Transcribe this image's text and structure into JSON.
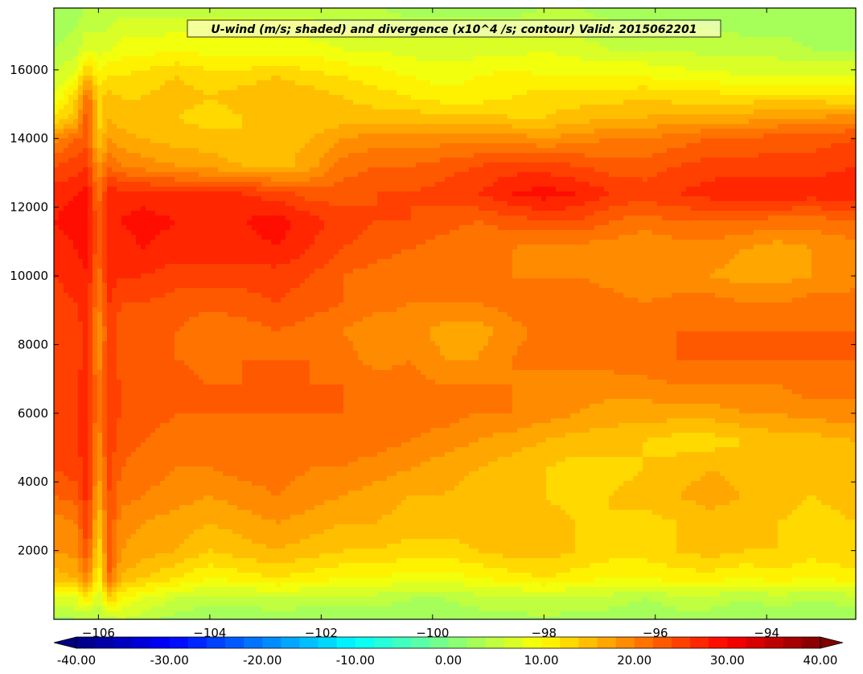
{
  "chart_data": {
    "type": "heatmap",
    "title": "U-wind (m/s; shaded) and divergence (x10^4 /s; contour) Valid: 2015062201",
    "xlabel": "",
    "ylabel": "",
    "xlim": [
      -106.8,
      -92.4
    ],
    "ylim": [
      0,
      17800
    ],
    "x_ticks": [
      -106,
      -104,
      -102,
      -100,
      -98,
      -96,
      -94
    ],
    "x_tick_labels": [
      "−106",
      "−104",
      "−102",
      "−100",
      "−98",
      "−96",
      "−94"
    ],
    "y_ticks": [
      2000,
      4000,
      6000,
      8000,
      10000,
      12000,
      14000,
      16000
    ],
    "y_tick_labels": [
      "2000",
      "4000",
      "6000",
      "8000",
      "10000",
      "12000",
      "14000",
      "16000"
    ],
    "colormap": "jet",
    "colorbar": {
      "min": -40,
      "max": 40,
      "levels": 40,
      "extend": "both",
      "ticks": [
        -40,
        -30,
        -20,
        -10,
        0,
        10,
        20,
        30,
        40
      ],
      "tick_labels": [
        "-40.00",
        "-30.00",
        "-20.00",
        "-10.00",
        "0.00",
        "10.00",
        "20.00",
        "30.00",
        "40.00"
      ]
    },
    "x": [
      -106.8,
      -106.4,
      -106.2,
      -106.0,
      -105.8,
      -105.6,
      -105.2,
      -104.6,
      -104.0,
      -103.4,
      -102.8,
      -102.2,
      -101.6,
      -101.0,
      -100.4,
      -99.8,
      -99.2,
      -98.6,
      -98.0,
      -97.4,
      -96.8,
      -96.2,
      -95.6,
      -95.0,
      -94.4,
      -93.8,
      -93.2,
      -92.4
    ],
    "y": [
      0,
      600,
      1200,
      2000,
      2800,
      3600,
      4400,
      5200,
      6000,
      6800,
      7600,
      8400,
      9200,
      10000,
      10800,
      11600,
      12400,
      13200,
      14000,
      14600,
      15200,
      15800,
      16600,
      17800
    ],
    "z": [
      [
        3,
        4,
        4,
        4,
        5,
        6,
        5,
        3,
        2,
        2,
        3,
        2,
        2,
        3,
        2,
        2,
        3,
        3,
        4,
        3,
        3,
        2,
        3,
        3,
        2,
        3,
        2,
        3
      ],
      [
        8,
        8,
        12,
        6,
        14,
        10,
        8,
        6,
        5,
        5,
        6,
        5,
        5,
        5,
        4,
        4,
        5,
        5,
        6,
        5,
        5,
        4,
        5,
        5,
        4,
        5,
        4,
        5
      ],
      [
        15,
        16,
        20,
        10,
        22,
        16,
        14,
        12,
        10,
        11,
        12,
        11,
        10,
        10,
        9,
        9,
        10,
        11,
        12,
        11,
        10,
        10,
        11,
        11,
        10,
        11,
        10,
        11
      ],
      [
        18,
        19,
        24,
        12,
        23,
        18,
        17,
        16,
        14,
        15,
        16,
        15,
        14,
        14,
        13,
        13,
        14,
        15,
        15,
        14,
        13,
        13,
        14,
        15,
        14,
        14,
        13,
        14
      ],
      [
        19,
        20,
        26,
        14,
        24,
        19,
        18,
        17,
        16,
        17,
        18,
        17,
        16,
        16,
        15,
        15,
        15,
        16,
        15,
        14,
        14,
        13,
        14,
        15,
        14,
        14,
        13,
        14
      ],
      [
        22,
        23,
        27,
        16,
        24,
        21,
        20,
        19,
        18,
        19,
        20,
        19,
        18,
        17,
        16,
        16,
        15,
        15,
        14,
        13,
        14,
        15,
        16,
        17,
        16,
        15,
        14,
        15
      ],
      [
        24,
        25,
        27,
        18,
        25,
        22,
        21,
        20,
        20,
        21,
        21,
        20,
        20,
        19,
        18,
        17,
        16,
        15,
        14,
        13,
        13,
        14,
        15,
        16,
        15,
        14,
        14,
        15
      ],
      [
        25,
        26,
        27,
        19,
        25,
        23,
        22,
        21,
        21,
        21,
        22,
        21,
        21,
        21,
        20,
        19,
        18,
        17,
        16,
        15,
        15,
        14,
        13,
        13,
        14,
        15,
        15,
        16
      ],
      [
        25,
        26,
        27,
        20,
        25,
        24,
        23,
        22,
        22,
        22,
        22,
        22,
        22,
        22,
        21,
        21,
        20,
        20,
        19,
        18,
        17,
        17,
        17,
        17,
        18,
        18,
        19,
        19
      ],
      [
        25,
        26,
        27,
        20,
        25,
        24,
        24,
        23,
        22,
        22,
        23,
        22,
        22,
        21,
        21,
        20,
        20,
        20,
        19,
        19,
        19,
        19,
        20,
        20,
        20,
        20,
        21,
        21
      ],
      [
        24,
        25,
        27,
        19,
        25,
        23,
        23,
        22,
        21,
        22,
        22,
        22,
        21,
        19,
        20,
        18,
        18,
        20,
        21,
        21,
        21,
        22,
        22,
        22,
        22,
        22,
        22,
        22
      ],
      [
        24,
        25,
        27,
        18,
        25,
        23,
        22,
        22,
        20,
        21,
        22,
        21,
        20,
        18,
        19,
        17,
        17,
        19,
        21,
        22,
        21,
        21,
        22,
        22,
        22,
        22,
        22,
        22
      ],
      [
        25,
        26,
        27,
        20,
        26,
        24,
        24,
        23,
        23,
        23,
        24,
        23,
        22,
        21,
        20,
        20,
        20,
        21,
        22,
        22,
        21,
        20,
        21,
        21,
        20,
        20,
        21,
        21
      ],
      [
        26,
        27,
        28,
        21,
        27,
        26,
        26,
        25,
        25,
        25,
        25,
        24,
        22,
        21,
        20,
        20,
        20,
        20,
        20,
        20,
        19,
        18,
        18,
        18,
        17,
        17,
        18,
        19
      ],
      [
        27,
        28,
        29,
        22,
        28,
        27,
        28,
        27,
        27,
        27,
        28,
        26,
        24,
        23,
        22,
        21,
        20,
        20,
        19,
        19,
        19,
        18,
        19,
        19,
        18,
        17,
        18,
        19
      ],
      [
        28,
        29,
        29,
        22,
        28,
        28,
        29,
        28,
        28,
        28,
        29,
        27,
        25,
        24,
        24,
        23,
        22,
        23,
        24,
        24,
        22,
        21,
        22,
        22,
        22,
        21,
        21,
        22
      ],
      [
        27,
        28,
        29,
        21,
        27,
        27,
        27,
        26,
        26,
        26,
        25,
        23,
        23,
        24,
        24,
        25,
        26,
        28,
        29,
        28,
        26,
        25,
        26,
        27,
        28,
        28,
        27,
        28
      ],
      [
        24,
        25,
        26,
        18,
        22,
        20,
        19,
        18,
        17,
        16,
        15,
        17,
        21,
        22,
        22,
        23,
        24,
        25,
        25,
        24,
        23,
        23,
        24,
        25,
        25,
        25,
        25,
        26
      ],
      [
        19,
        22,
        23,
        14,
        18,
        17,
        16,
        15,
        15,
        14,
        15,
        16,
        18,
        19,
        19,
        19,
        19,
        19,
        18,
        19,
        20,
        20,
        21,
        22,
        22,
        23,
        23,
        24
      ],
      [
        12,
        15,
        24,
        13,
        16,
        15,
        14,
        14,
        13,
        14,
        15,
        14,
        15,
        15,
        15,
        15,
        15,
        14,
        14,
        15,
        16,
        16,
        17,
        17,
        17,
        18,
        18,
        19
      ],
      [
        8,
        14,
        22,
        13,
        15,
        14,
        14,
        15,
        14,
        15,
        16,
        15,
        14,
        13,
        12,
        11,
        11,
        12,
        13,
        13,
        13,
        14,
        13,
        13,
        13,
        13,
        13,
        12
      ],
      [
        6,
        9,
        16,
        11,
        12,
        12,
        13,
        14,
        13,
        13,
        14,
        13,
        12,
        11,
        10,
        9,
        10,
        11,
        10,
        10,
        10,
        10,
        9,
        9,
        8,
        8,
        8,
        8
      ],
      [
        4,
        5,
        8,
        7,
        8,
        9,
        9,
        10,
        9,
        9,
        9,
        9,
        8,
        8,
        7,
        7,
        7,
        7,
        8,
        7,
        6,
        6,
        6,
        5,
        5,
        5,
        4,
        4
      ],
      [
        2,
        3,
        4,
        4,
        4,
        5,
        5,
        5,
        5,
        5,
        5,
        5,
        4,
        4,
        3,
        3,
        3,
        3,
        4,
        4,
        3,
        3,
        3,
        3,
        2,
        2,
        2,
        2
      ]
    ]
  }
}
